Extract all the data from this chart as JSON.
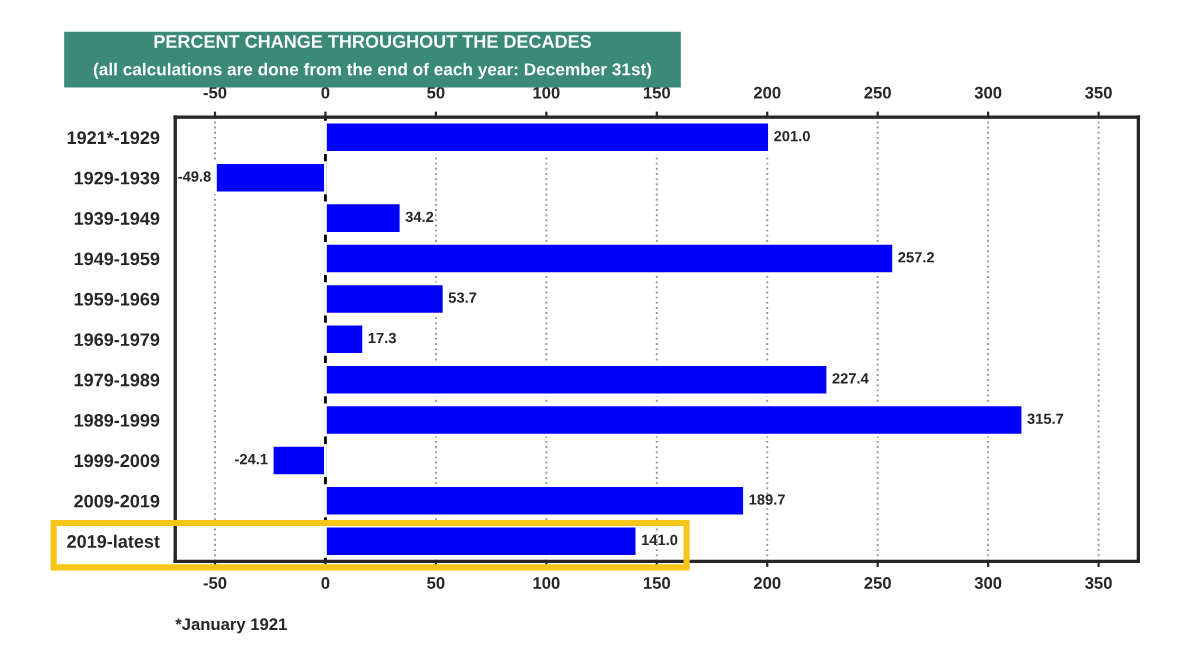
{
  "chart_data": {
    "type": "bar",
    "orientation": "horizontal",
    "title": "PERCENT CHANGE THROUGHOUT THE DECADES",
    "subtitle": "(all calculations are done from the end of each year: December 31st)",
    "categories": [
      "1921*-1929",
      "1929-1939",
      "1939-1949",
      "1949-1959",
      "1959-1969",
      "1969-1979",
      "1979-1989",
      "1989-1999",
      "1999-2009",
      "2009-2019",
      "2019-latest"
    ],
    "values": [
      201.0,
      -49.8,
      34.2,
      257.2,
      53.7,
      17.3,
      227.4,
      315.7,
      -24.1,
      189.7,
      141.0
    ],
    "value_labels": [
      "201.0",
      "-49.8",
      "34.2",
      "257.2",
      "53.7",
      "17.3",
      "227.4",
      "315.7",
      "-24.1",
      "189.7",
      "141.0"
    ],
    "color": "#0000ff",
    "xlim": [
      -68,
      368
    ],
    "xticks": [
      -50,
      0,
      50,
      100,
      150,
      200,
      250,
      300,
      350
    ],
    "x2lim": [
      -68,
      368
    ],
    "x2ticks": [
      -50,
      0,
      50,
      100,
      150,
      200,
      250,
      300,
      350
    ],
    "grid": "x",
    "ref_lines": [
      {
        "axis": "x",
        "value": 0,
        "color": "#000000"
      }
    ],
    "annotations": [
      "*January 1921"
    ]
  }
}
